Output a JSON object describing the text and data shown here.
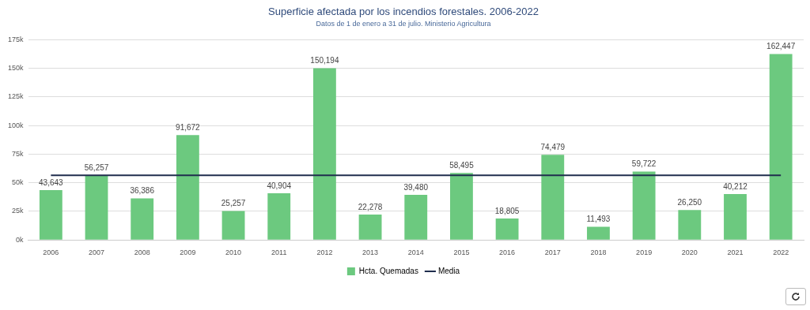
{
  "chart_data": {
    "type": "bar",
    "title": "Superficie afectada por los incendios forestales. 2006-2022",
    "subtitle": "Datos de 1 de enero a 31 de julio. Ministerio Agricultura",
    "categories": [
      "2006",
      "2007",
      "2008",
      "2009",
      "2010",
      "2011",
      "2012",
      "2013",
      "2014",
      "2015",
      "2016",
      "2017",
      "2018",
      "2019",
      "2020",
      "2021",
      "2022"
    ],
    "series": [
      {
        "name": "Hcta. Quemadas",
        "color": "#6cc97f",
        "values": [
          43643,
          56257,
          36386,
          91672,
          25257,
          40904,
          150194,
          22278,
          39480,
          58495,
          18805,
          74479,
          11493,
          59722,
          26250,
          40212,
          162447
        ],
        "value_labels": [
          "43,643",
          "56,257",
          "36,386",
          "91,672",
          "25,257",
          "40,904",
          "150,194",
          "22,278",
          "39,480",
          "58,495",
          "18,805",
          "74,479",
          "11,493",
          "59,722",
          "26,250",
          "40,212",
          "162,447"
        ]
      },
      {
        "name": "Media",
        "type": "line",
        "color": "#1f2d4d",
        "values": [
          56500,
          56500,
          56500,
          56500,
          56500,
          56500,
          56500,
          56500,
          56500,
          56500,
          56500,
          56500,
          56500,
          56500,
          56500,
          56500,
          56500
        ]
      }
    ],
    "ylim": [
      0,
      175000
    ],
    "yticks": [
      {
        "value": 0,
        "label": "0k"
      },
      {
        "value": 25000,
        "label": "25k"
      },
      {
        "value": 50000,
        "label": "50k"
      },
      {
        "value": 75000,
        "label": "75k"
      },
      {
        "value": 100000,
        "label": "100k"
      },
      {
        "value": 125000,
        "label": "125k"
      },
      {
        "value": 150000,
        "label": "150k"
      },
      {
        "value": 175000,
        "label": "175k"
      }
    ],
    "grid": "y",
    "legend": "bottom",
    "marker": "none"
  }
}
